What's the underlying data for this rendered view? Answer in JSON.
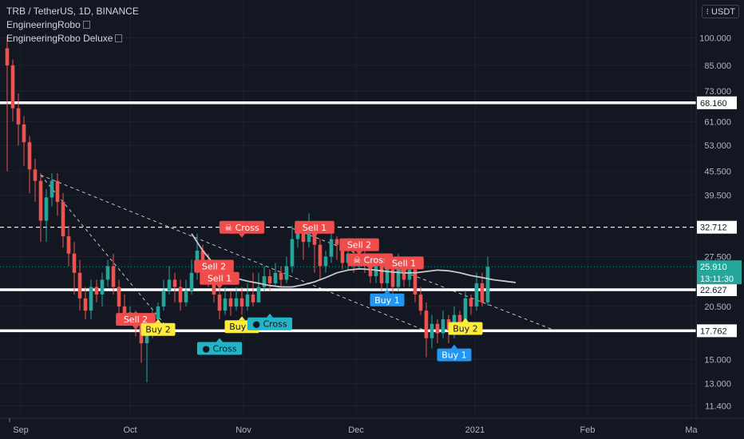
{
  "legend": {
    "symbol": "TRB / TetherUS, 1D, BINANCE",
    "indicators": [
      "EngineeringRobo",
      "EngineeringRobo Deluxe"
    ]
  },
  "currency_badge": "USDT",
  "colors": {
    "background": "#131722",
    "bull": "#26a69a",
    "bear": "#ef5350",
    "level_line": "#ffffff",
    "ma_line": "#c8c8c8",
    "sell_label": "#f04c4c",
    "buy_label": "#2196f3",
    "buy2_label": "#ffeb3b",
    "cross_label": "#22b5c5",
    "countdown": "#26a69a"
  },
  "chart_data": {
    "type": "candlestick",
    "x_axis": {
      "ticks": [
        "Sep",
        "Oct",
        "Nov",
        "Dec",
        "2021",
        "Feb",
        "Ma"
      ]
    },
    "y_axis": {
      "scale": "log",
      "range": [
        10.6,
        125
      ],
      "ticks": [
        "100.000",
        "85.000",
        "73.000",
        "61.000",
        "53.000",
        "45.500",
        "39.500",
        "27.500",
        "20.500",
        "15.000",
        "13.000",
        "11.400"
      ]
    },
    "last_price": {
      "value": 25.91,
      "label": "25.910",
      "countdown": "13:11:30"
    },
    "levels": [
      {
        "value": 68.16,
        "label": "68.160",
        "style": "solid"
      },
      {
        "value": 32.712,
        "label": "32.712",
        "style": "dashed"
      },
      {
        "value": 22.627,
        "label": "22.627",
        "style": "solid"
      },
      {
        "value": 17.762,
        "label": "17.762",
        "style": "solid"
      }
    ],
    "trendlines": [
      {
        "from": [
          6,
          44.5
        ],
        "to": [
          28,
          18.6
        ],
        "style": "dashed"
      },
      {
        "from": [
          6,
          44.5
        ],
        "to": [
          76,
          17.5
        ],
        "style": "dashed"
      },
      {
        "from": [
          51,
          32.5
        ],
        "to": [
          98,
          17.8
        ],
        "style": "dashed"
      }
    ],
    "moving_average": [
      [
        33,
        31.5
      ],
      [
        35,
        28.5
      ],
      [
        37,
        26.3
      ],
      [
        39,
        25.0
      ],
      [
        41,
        24.2
      ],
      [
        43,
        23.8
      ],
      [
        45,
        23.5
      ],
      [
        47,
        23.2
      ],
      [
        49,
        23.0
      ],
      [
        51,
        23.0
      ],
      [
        53,
        23.3
      ],
      [
        55,
        23.7
      ],
      [
        57,
        24.3
      ],
      [
        59,
        25.0
      ],
      [
        61,
        25.4
      ],
      [
        63,
        25.6
      ],
      [
        65,
        25.5
      ],
      [
        67,
        25.3
      ],
      [
        69,
        25.1
      ],
      [
        71,
        25.0
      ],
      [
        73,
        25.0
      ],
      [
        75,
        25.2
      ],
      [
        77,
        25.4
      ],
      [
        79,
        25.3
      ],
      [
        81,
        25.0
      ],
      [
        83,
        24.6
      ],
      [
        85,
        24.3
      ],
      [
        87,
        24.0
      ],
      [
        89,
        23.8
      ],
      [
        91,
        23.6
      ]
    ],
    "candles": [
      [
        94,
        85,
        101,
        45.5
      ],
      [
        85,
        66,
        88,
        61
      ],
      [
        66,
        60,
        72,
        53
      ],
      [
        60,
        54,
        63,
        47
      ],
      [
        54,
        46,
        56,
        40
      ],
      [
        46,
        43,
        49,
        38
      ],
      [
        43,
        34,
        45,
        30
      ],
      [
        34,
        39,
        41,
        30
      ],
      [
        39,
        43,
        45,
        37
      ],
      [
        43,
        38,
        45,
        35
      ],
      [
        38,
        31,
        40,
        29
      ],
      [
        31,
        28,
        33,
        26
      ],
      [
        28,
        25,
        30,
        22
      ],
      [
        25,
        21.5,
        27,
        20
      ],
      [
        21.5,
        20,
        23,
        19
      ],
      [
        20,
        23,
        24,
        19
      ],
      [
        23,
        22,
        24,
        21
      ],
      [
        22,
        24,
        25,
        20.5
      ],
      [
        24,
        26,
        27,
        23
      ],
      [
        26,
        23,
        28,
        22
      ],
      [
        23,
        20.5,
        24,
        19
      ],
      [
        20.5,
        19.5,
        22,
        18.5
      ],
      [
        19.5,
        19.8,
        20.5,
        18.4
      ],
      [
        19.8,
        18.5,
        20,
        17.2
      ],
      [
        18.5,
        16.5,
        19.3,
        14.7
      ],
      [
        16.5,
        17.4,
        17.8,
        13.1
      ],
      [
        17.4,
        19,
        20,
        17
      ],
      [
        19,
        20.5,
        21,
        18.5
      ],
      [
        20.5,
        22.5,
        24,
        20
      ],
      [
        22.5,
        24,
        26,
        22
      ],
      [
        24,
        23,
        25,
        21
      ],
      [
        23,
        21,
        24,
        20
      ],
      [
        21,
        22.5,
        24,
        20.5
      ],
      [
        22.5,
        25,
        27,
        22
      ],
      [
        25,
        28.5,
        31.5,
        24
      ],
      [
        28.5,
        27,
        29.5,
        25
      ],
      [
        27,
        25,
        28,
        23
      ],
      [
        25,
        22,
        26,
        21
      ],
      [
        22,
        20,
        23,
        19
      ],
      [
        20,
        21.5,
        23,
        19.5
      ],
      [
        21.5,
        20.5,
        22.5,
        19.4
      ],
      [
        20.5,
        21.5,
        23,
        20
      ],
      [
        21.5,
        20.5,
        23,
        19.5
      ],
      [
        20.5,
        22,
        23.5,
        20
      ],
      [
        22,
        21,
        25,
        20.5
      ],
      [
        21,
        23,
        25,
        21
      ],
      [
        23,
        24.5,
        26,
        22.5
      ],
      [
        24.5,
        23.5,
        25.5,
        22.5
      ],
      [
        23.5,
        25,
        26.5,
        23
      ],
      [
        25,
        24,
        26,
        23
      ],
      [
        24,
        26,
        27.5,
        23.5
      ],
      [
        26,
        30.5,
        33,
        25
      ],
      [
        30.5,
        32.5,
        34,
        29
      ],
      [
        32.5,
        30,
        33,
        27
      ],
      [
        30,
        33.5,
        35.5,
        29
      ],
      [
        33.5,
        29.5,
        34,
        25
      ],
      [
        29.5,
        26,
        30.5,
        24
      ],
      [
        26,
        27.5,
        28.5,
        25
      ],
      [
        27.5,
        30.5,
        33,
        26.5
      ],
      [
        30.5,
        29.5,
        31,
        27
      ],
      [
        29.5,
        26.5,
        30,
        25.5
      ],
      [
        26.5,
        28,
        29,
        25.5
      ],
      [
        28,
        26.5,
        28.5,
        25
      ],
      [
        26.5,
        27.5,
        30,
        25.5
      ],
      [
        27.5,
        26.5,
        30,
        25
      ],
      [
        26.5,
        24.5,
        27,
        23.5
      ],
      [
        24.5,
        26,
        27,
        23.5
      ],
      [
        26,
        23.5,
        26.5,
        22.5
      ],
      [
        23.5,
        25.5,
        26.5,
        22.5
      ],
      [
        25.5,
        23,
        26,
        22
      ],
      [
        23,
        26,
        28,
        22.5
      ],
      [
        26,
        24,
        27,
        23
      ],
      [
        24,
        25.5,
        26.5,
        23
      ],
      [
        25.5,
        22,
        26,
        21
      ],
      [
        22,
        20,
        23,
        19.5
      ],
      [
        20,
        17,
        21,
        15.2
      ],
      [
        17,
        18.5,
        19.5,
        16
      ],
      [
        18.5,
        17.5,
        19,
        16.5
      ],
      [
        17.5,
        19,
        20,
        17
      ],
      [
        19,
        17.8,
        19.5,
        16.5
      ],
      [
        17.8,
        19.5,
        20.5,
        17
      ],
      [
        19.5,
        18.5,
        20,
        17.5
      ],
      [
        18.5,
        21.5,
        22.5,
        18
      ],
      [
        21.5,
        20.5,
        22,
        19.5
      ],
      [
        20.5,
        23.5,
        25,
        20
      ],
      [
        23.5,
        21,
        25,
        20.5
      ],
      [
        21,
        25.9,
        27.5,
        20.6
      ]
    ],
    "signals": [
      {
        "text": "Sell 2",
        "type": "sell",
        "bar": 23,
        "price": 19.0
      },
      {
        "text": "Buy 2",
        "type": "buy2",
        "bar": 27,
        "price": 17.9
      },
      {
        "text": "Cross",
        "type": "cross",
        "bar": 38,
        "price": 16.0
      },
      {
        "text": "Sell 2",
        "type": "sell",
        "bar": 37,
        "price": 26.0
      },
      {
        "text": "Sell 1",
        "type": "sell",
        "bar": 38,
        "price": 24.2
      },
      {
        "text": "Cross",
        "type": "sell-cross",
        "bar": 42,
        "price": 32.7
      },
      {
        "text": "Buy 2",
        "type": "buy2",
        "bar": 42,
        "price": 18.2
      },
      {
        "text": "Cross",
        "type": "cross",
        "bar": 47,
        "price": 18.5
      },
      {
        "text": "Sell 1",
        "type": "sell",
        "bar": 55,
        "price": 32.7
      },
      {
        "text": "Sell 2",
        "type": "sell",
        "bar": 63,
        "price": 29.5
      },
      {
        "text": "Cross",
        "type": "sell-cross",
        "bar": 65,
        "price": 27.0
      },
      {
        "text": "Sell 1",
        "type": "sell",
        "bar": 71,
        "price": 26.5
      },
      {
        "text": "Buy 1",
        "type": "buy",
        "bar": 68,
        "price": 21.3
      },
      {
        "text": "Buy 2",
        "type": "buy2",
        "bar": 82,
        "price": 18.0
      },
      {
        "text": "Buy 1",
        "type": "buy",
        "bar": 80,
        "price": 15.4
      }
    ]
  }
}
